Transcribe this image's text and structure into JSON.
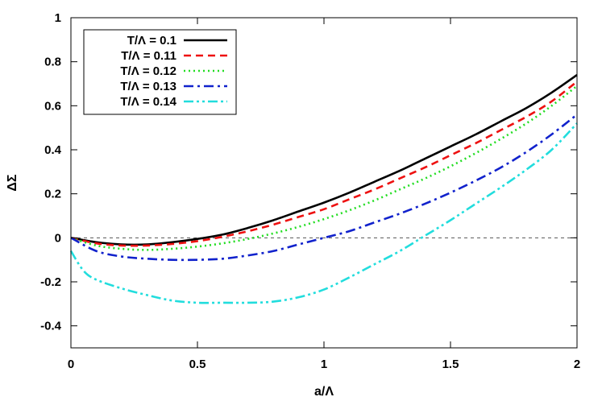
{
  "chart_data": {
    "type": "line",
    "xlabel": "a/Λ",
    "ylabel": "ΔΣ",
    "xlim": [
      0,
      2
    ],
    "ylim": [
      -0.5,
      1
    ],
    "xticks": [
      0,
      0.5,
      1,
      1.5,
      2
    ],
    "xtick_labels": [
      "0",
      "0.5",
      "1",
      "1.5",
      "2"
    ],
    "yticks": [
      -0.4,
      -0.2,
      0,
      0.2,
      0.4,
      0.6,
      0.8,
      1
    ],
    "ytick_labels": [
      "-0.4",
      "-0.2",
      "0",
      "0.2",
      "0.4",
      "0.6",
      "0.8",
      "1"
    ],
    "zero_line": true,
    "legend_position": "top-left",
    "series": [
      {
        "name": "T/Λ = 0.1",
        "color": "#000000",
        "dash": "solid",
        "x": [
          0,
          0.1,
          0.2,
          0.3,
          0.4,
          0.5,
          0.6,
          0.7,
          0.8,
          0.9,
          1.0,
          1.1,
          1.2,
          1.3,
          1.4,
          1.5,
          1.6,
          1.7,
          1.8,
          1.9,
          2.0
        ],
        "y": [
          0,
          -0.02,
          -0.03,
          -0.03,
          -0.02,
          -0.005,
          0.015,
          0.045,
          0.08,
          0.12,
          0.16,
          0.205,
          0.255,
          0.305,
          0.36,
          0.415,
          0.47,
          0.53,
          0.59,
          0.66,
          0.74
        ]
      },
      {
        "name": "T/Λ = 0.11",
        "color": "#ee1111",
        "dash": "dashed",
        "x": [
          0,
          0.1,
          0.2,
          0.3,
          0.4,
          0.5,
          0.6,
          0.7,
          0.8,
          0.9,
          1.0,
          1.1,
          1.2,
          1.3,
          1.4,
          1.5,
          1.6,
          1.7,
          1.8,
          1.9,
          2.0
        ],
        "y": [
          0,
          -0.025,
          -0.035,
          -0.035,
          -0.028,
          -0.015,
          0.005,
          0.03,
          0.06,
          0.095,
          0.13,
          0.175,
          0.22,
          0.27,
          0.32,
          0.375,
          0.43,
          0.49,
          0.55,
          0.62,
          0.71
        ]
      },
      {
        "name": "T/Λ = 0.12",
        "color": "#22dd22",
        "dash": "dotted",
        "x": [
          0,
          0.1,
          0.2,
          0.3,
          0.4,
          0.5,
          0.6,
          0.7,
          0.8,
          0.9,
          1.0,
          1.1,
          1.2,
          1.3,
          1.4,
          1.5,
          1.6,
          1.7,
          1.8,
          1.9,
          2.0
        ],
        "y": [
          0,
          -0.035,
          -0.05,
          -0.055,
          -0.05,
          -0.04,
          -0.025,
          -0.005,
          0.02,
          0.05,
          0.085,
          0.125,
          0.17,
          0.22,
          0.27,
          0.325,
          0.385,
          0.45,
          0.52,
          0.6,
          0.69
        ]
      },
      {
        "name": "T/Λ = 0.13",
        "color": "#1122cc",
        "dash": "dashdot",
        "x": [
          0,
          0.1,
          0.2,
          0.3,
          0.4,
          0.5,
          0.6,
          0.7,
          0.8,
          0.9,
          1.0,
          1.1,
          1.2,
          1.3,
          1.4,
          1.5,
          1.6,
          1.7,
          1.8,
          1.9,
          2.0
        ],
        "y": [
          0,
          -0.06,
          -0.085,
          -0.095,
          -0.1,
          -0.1,
          -0.095,
          -0.08,
          -0.06,
          -0.03,
          0.0,
          0.03,
          0.07,
          0.11,
          0.155,
          0.205,
          0.26,
          0.32,
          0.39,
          0.47,
          0.56
        ]
      },
      {
        "name": "T/Λ = 0.14",
        "color": "#22dddd",
        "dash": "dashdotdot",
        "x": [
          0,
          0.05,
          0.1,
          0.2,
          0.3,
          0.4,
          0.5,
          0.6,
          0.7,
          0.8,
          0.9,
          1.0,
          1.1,
          1.2,
          1.3,
          1.4,
          1.5,
          1.6,
          1.7,
          1.8,
          1.9,
          2.0
        ],
        "y": [
          -0.06,
          -0.15,
          -0.19,
          -0.23,
          -0.26,
          -0.285,
          -0.295,
          -0.295,
          -0.295,
          -0.29,
          -0.27,
          -0.235,
          -0.18,
          -0.12,
          -0.06,
          0.01,
          0.08,
          0.155,
          0.23,
          0.31,
          0.4,
          0.52
        ]
      }
    ]
  }
}
